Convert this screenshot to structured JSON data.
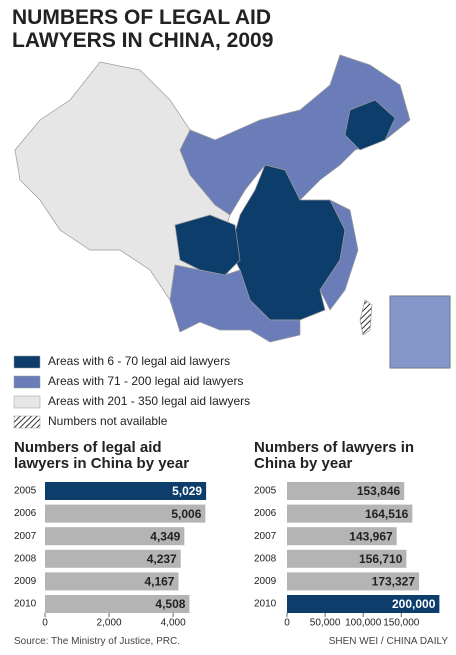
{
  "header": {
    "title": "NUMBERS OF LEGAL AID LAWYERS IN CHINA, 2009"
  },
  "legend": {
    "items": [
      {
        "label": "Areas with 6 - 70 legal aid lawyers",
        "color": "#0d3d6b"
      },
      {
        "label": "Areas with 71 - 200 legal aid lawyers",
        "color": "#6a7db8"
      },
      {
        "label": "Areas with 201 - 350 legal aid lawyers",
        "color": "#e6e6e6"
      },
      {
        "label": "Numbers not available",
        "color": "hatch"
      }
    ]
  },
  "chart_data": [
    {
      "type": "bar",
      "orientation": "horizontal",
      "title": "Numbers of  legal aid lawyers in China by year",
      "categories": [
        "2005",
        "2006",
        "2007",
        "2008",
        "2009",
        "2010"
      ],
      "values": [
        5029,
        5006,
        4349,
        4237,
        4167,
        4508
      ],
      "value_labels": [
        "5,029",
        "5,006",
        "4,349",
        "4,237",
        "4,167",
        "4,508"
      ],
      "colors": [
        "#0d3d6b",
        "#b4b4b4",
        "#b4b4b4",
        "#b4b4b4",
        "#b4b4b4",
        "#b4b4b4"
      ],
      "xlim": [
        0,
        5400
      ],
      "xticks": [
        0,
        {
          "value": 2000,
          "label": "2,000"
        },
        {
          "value": 4000,
          "label": "4,000"
        }
      ]
    },
    {
      "type": "bar",
      "orientation": "horizontal",
      "title": "Numbers of lawyers in China by year",
      "categories": [
        "2005",
        "2006",
        "2007",
        "2008",
        "2009",
        "2010"
      ],
      "values": [
        153846,
        164516,
        143967,
        156710,
        173327,
        200000
      ],
      "value_labels": [
        "153,846",
        "164,516",
        "143,967",
        "156,710",
        "173,327",
        "200,000"
      ],
      "colors": [
        "#b4b4b4",
        "#b4b4b4",
        "#b4b4b4",
        "#b4b4b4",
        "#b4b4b4",
        "#0d3d6b"
      ],
      "xlim": [
        0,
        210000
      ],
      "xticks": [
        0,
        {
          "value": 50000,
          "label": "50,000"
        },
        {
          "value": 100000,
          "label": "100,000"
        },
        {
          "value": 150000,
          "label": "150,000"
        }
      ]
    }
  ],
  "footer": {
    "source": "Source: The Ministry of Justice, PRC.",
    "credit": "SHEN WEI / CHINA DAILY"
  }
}
